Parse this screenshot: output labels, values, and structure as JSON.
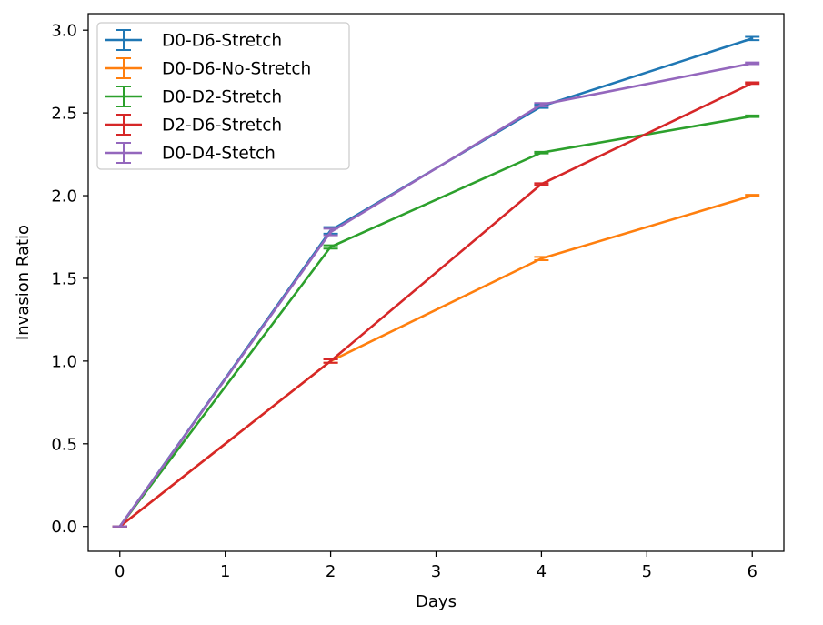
{
  "chart_data": {
    "type": "line",
    "title": "",
    "xlabel": "Days",
    "ylabel": "Invasion Ratio",
    "xlim": [
      -0.3,
      6.3
    ],
    "ylim": [
      -0.15,
      3.1
    ],
    "xticks": [
      0,
      1,
      2,
      3,
      4,
      5,
      6
    ],
    "yticks": [
      0.0,
      0.5,
      1.0,
      1.5,
      2.0,
      2.5,
      3.0
    ],
    "xtick_labels": [
      "0",
      "1",
      "2",
      "3",
      "4",
      "5",
      "6"
    ],
    "ytick_labels": [
      "0.0",
      "0.5",
      "1.0",
      "1.5",
      "2.0",
      "2.5",
      "3.0"
    ],
    "grid": false,
    "legend_position": "top-left",
    "x": [
      0,
      2,
      4,
      6
    ],
    "series": [
      {
        "name": "D0-D6-Stretch",
        "color": "#1f77b4",
        "values": [
          0.0,
          1.79,
          2.54,
          2.95
        ],
        "errors": [
          0.0,
          0.02,
          0.01,
          0.01
        ]
      },
      {
        "name": "D0-D6-No-Stretch",
        "color": "#ff7f0e",
        "values": [
          0.0,
          1.0,
          1.62,
          2.0
        ],
        "errors": [
          0.0,
          0.01,
          0.01,
          0.005
        ]
      },
      {
        "name": "D0-D2-Stretch",
        "color": "#2ca02c",
        "values": [
          0.0,
          1.69,
          2.26,
          2.48
        ],
        "errors": [
          0.0,
          0.01,
          0.005,
          0.005
        ]
      },
      {
        "name": "D2-D6-Stretch",
        "color": "#d62728",
        "values": [
          0.0,
          1.0,
          2.07,
          2.68
        ],
        "errors": [
          0.0,
          0.01,
          0.005,
          0.005
        ]
      },
      {
        "name": "D0-D4-Stetch",
        "color": "#9467bd",
        "values": [
          0.0,
          1.78,
          2.55,
          2.8
        ],
        "errors": [
          0.0,
          0.02,
          0.01,
          0.005
        ]
      }
    ]
  }
}
